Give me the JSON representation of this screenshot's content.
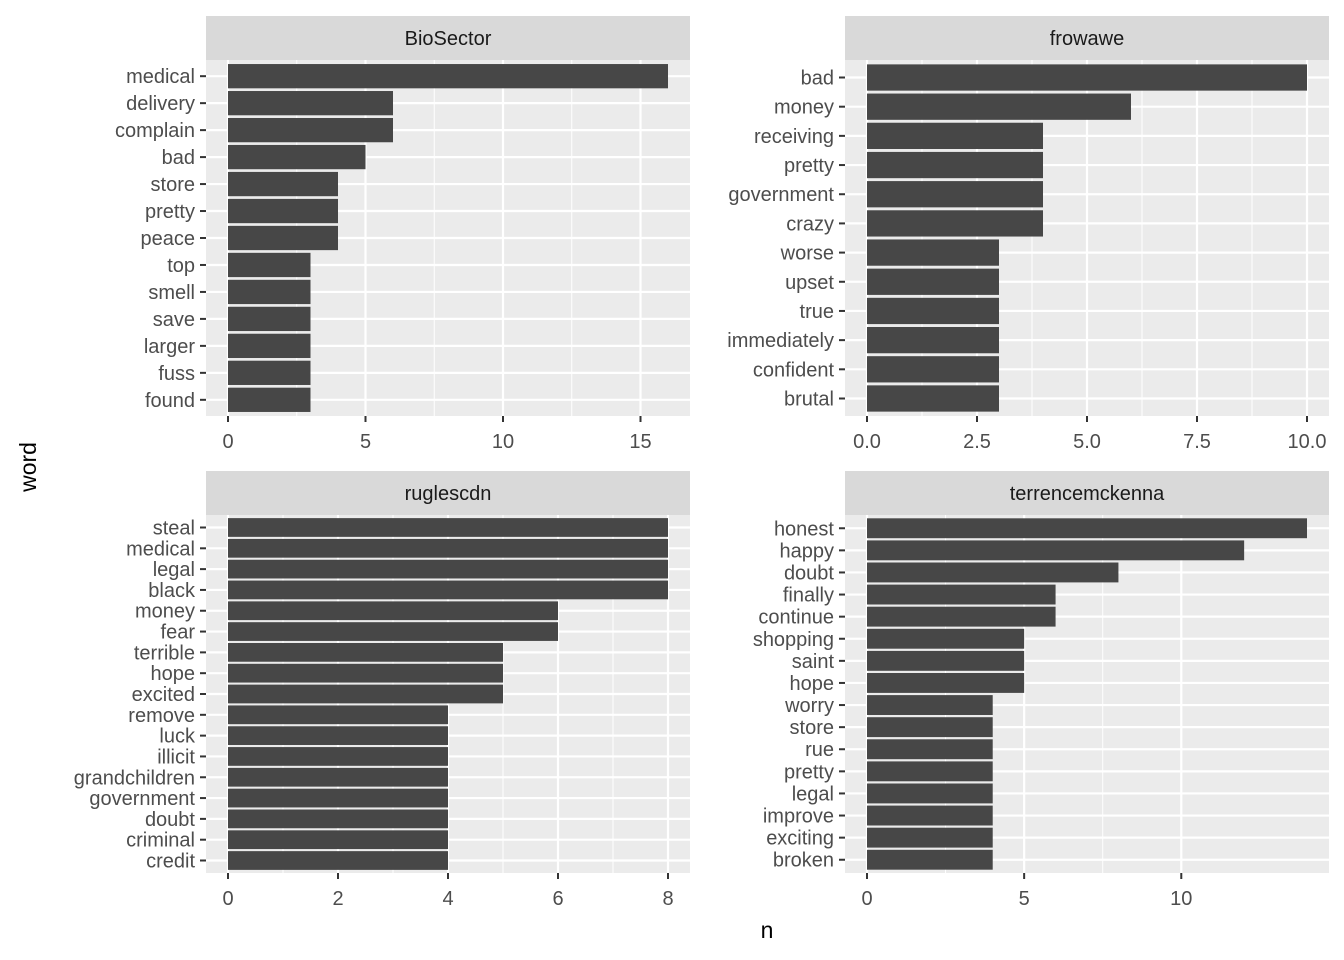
{
  "chart_data": {
    "type": "bar",
    "orientation": "horizontal",
    "xlabel": "n",
    "ylabel": "word",
    "grid": true,
    "bar_color": "#474747",
    "panel_bg": "#ebebeb",
    "strip_bg": "#d9d9d9",
    "facets": [
      {
        "title": "BioSector",
        "xlim": [
          -0.8,
          16.8
        ],
        "xticks": [
          0,
          5,
          10,
          15
        ],
        "xtick_labels": [
          "0",
          "5",
          "10",
          "15"
        ],
        "categories": [
          "medical",
          "delivery",
          "complain",
          "bad",
          "store",
          "pretty",
          "peace",
          "top",
          "smell",
          "save",
          "larger",
          "fuss",
          "found"
        ],
        "values": [
          16,
          6,
          6,
          5,
          4,
          4,
          4,
          3,
          3,
          3,
          3,
          3,
          3
        ]
      },
      {
        "title": "frowawe",
        "xlim": [
          -0.5,
          10.5
        ],
        "xticks": [
          0,
          2.5,
          5,
          7.5,
          10
        ],
        "xtick_labels": [
          "0.0",
          "2.5",
          "5.0",
          "7.5",
          "10.0"
        ],
        "categories": [
          "bad",
          "money",
          "receiving",
          "pretty",
          "government",
          "crazy",
          "worse",
          "upset",
          "true",
          "immediately",
          "confident",
          "brutal"
        ],
        "values": [
          10,
          6,
          4,
          4,
          4,
          4,
          3,
          3,
          3,
          3,
          3,
          3
        ]
      },
      {
        "title": "ruglescdn",
        "xlim": [
          -0.4,
          8.4
        ],
        "xticks": [
          0,
          2,
          4,
          6,
          8
        ],
        "xtick_labels": [
          "0",
          "2",
          "4",
          "6",
          "8"
        ],
        "categories": [
          "steal",
          "medical",
          "legal",
          "black",
          "money",
          "fear",
          "terrible",
          "hope",
          "excited",
          "remove",
          "luck",
          "illicit",
          "grandchildren",
          "government",
          "doubt",
          "criminal",
          "credit"
        ],
        "values": [
          8,
          8,
          8,
          8,
          6,
          6,
          5,
          5,
          5,
          4,
          4,
          4,
          4,
          4,
          4,
          4,
          4
        ]
      },
      {
        "title": "terrencemckenna",
        "xlim": [
          -0.7,
          14.7
        ],
        "xticks": [
          0,
          5,
          10
        ],
        "xtick_labels": [
          "0",
          "5",
          "10"
        ],
        "categories": [
          "honest",
          "happy",
          "doubt",
          "finally",
          "continue",
          "shopping",
          "saint",
          "hope",
          "worry",
          "store",
          "rue",
          "pretty",
          "legal",
          "improve",
          "exciting",
          "broken"
        ],
        "values": [
          14,
          12,
          8,
          6,
          6,
          5,
          5,
          5,
          4,
          4,
          4,
          4,
          4,
          4,
          4,
          4
        ]
      }
    ]
  }
}
